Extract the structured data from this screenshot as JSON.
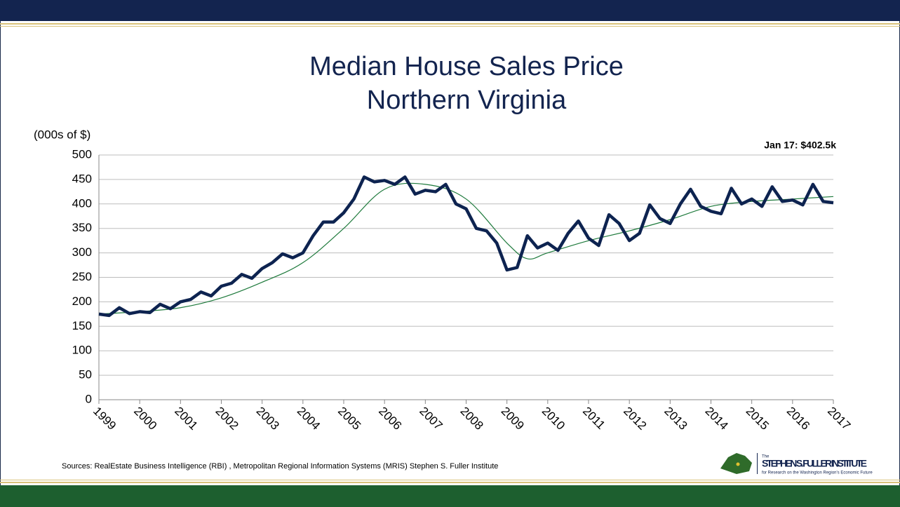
{
  "chart_data": {
    "type": "line",
    "title": "Median House Sales Price",
    "subtitle": "Northern Virginia",
    "y_label": "(000s of $)",
    "annotation": "Jan 17: $402.5k",
    "xlim": [
      1999,
      2017
    ],
    "xticks": [
      1999,
      2000,
      2001,
      2002,
      2003,
      2004,
      2005,
      2006,
      2007,
      2008,
      2009,
      2010,
      2011,
      2012,
      2013,
      2014,
      2015,
      2016,
      2017
    ],
    "ylim": [
      0,
      500
    ],
    "yticks": [
      0,
      50,
      100,
      150,
      200,
      250,
      300,
      350,
      400,
      450,
      500
    ],
    "grid": true,
    "series": [
      {
        "color": "#0d2350",
        "x": [
          1999,
          1999.25,
          1999.5,
          1999.75,
          2000,
          2000.25,
          2000.5,
          2000.75,
          2001,
          2001.25,
          2001.5,
          2001.75,
          2002,
          2002.25,
          2002.5,
          2002.75,
          2003,
          2003.25,
          2003.5,
          2003.75,
          2004,
          2004.25,
          2004.5,
          2004.75,
          2005,
          2005.25,
          2005.5,
          2005.75,
          2006,
          2006.25,
          2006.5,
          2006.75,
          2007,
          2007.25,
          2007.5,
          2007.75,
          2008,
          2008.25,
          2008.5,
          2008.75,
          2009,
          2009.25,
          2009.5,
          2009.75,
          2010,
          2010.25,
          2010.5,
          2010.75,
          2011,
          2011.25,
          2011.5,
          2011.75,
          2012,
          2012.25,
          2012.5,
          2012.75,
          2013,
          2013.25,
          2013.5,
          2013.75,
          2014,
          2014.25,
          2014.5,
          2014.75,
          2015,
          2015.25,
          2015.5,
          2015.75,
          2016,
          2016.25,
          2016.5,
          2016.75,
          2017
        ],
        "values": [
          175,
          172,
          188,
          176,
          180,
          178,
          195,
          186,
          200,
          205,
          220,
          212,
          232,
          238,
          256,
          248,
          268,
          280,
          298,
          290,
          300,
          335,
          363,
          363,
          382,
          410,
          455,
          445,
          448,
          440,
          455,
          420,
          428,
          425,
          440,
          400,
          390,
          350,
          345,
          320,
          265,
          270,
          335,
          310,
          320,
          305,
          340,
          365,
          330,
          315,
          378,
          360,
          325,
          340,
          398,
          370,
          360,
          400,
          430,
          395,
          385,
          380,
          432,
          400,
          410,
          395,
          435,
          405,
          408,
          398,
          440,
          405,
          402.5
        ]
      },
      {
        "color": "#1e7a3c",
        "x": [
          1999,
          2000,
          2001,
          2002,
          2003,
          2004,
          2005,
          2006,
          2007,
          2008,
          2009,
          2009.5,
          2010,
          2011,
          2012,
          2013,
          2014,
          2015,
          2016,
          2017
        ],
        "values": [
          175,
          180,
          188,
          208,
          240,
          280,
          350,
          430,
          440,
          410,
          320,
          288,
          300,
          325,
          345,
          368,
          395,
          405,
          410,
          415
        ]
      }
    ]
  },
  "footer": {
    "sources": "Sources: RealEstate Business Intelligence (RBI) , Metropolitan Regional Information Systems (MRIS) Stephen S. Fuller Institute",
    "logo_small": "The",
    "logo_name": "STEPHEN S. FULLER INSTITUTE",
    "logo_tagline": "for Research on the Washington Region's Economic Future"
  }
}
